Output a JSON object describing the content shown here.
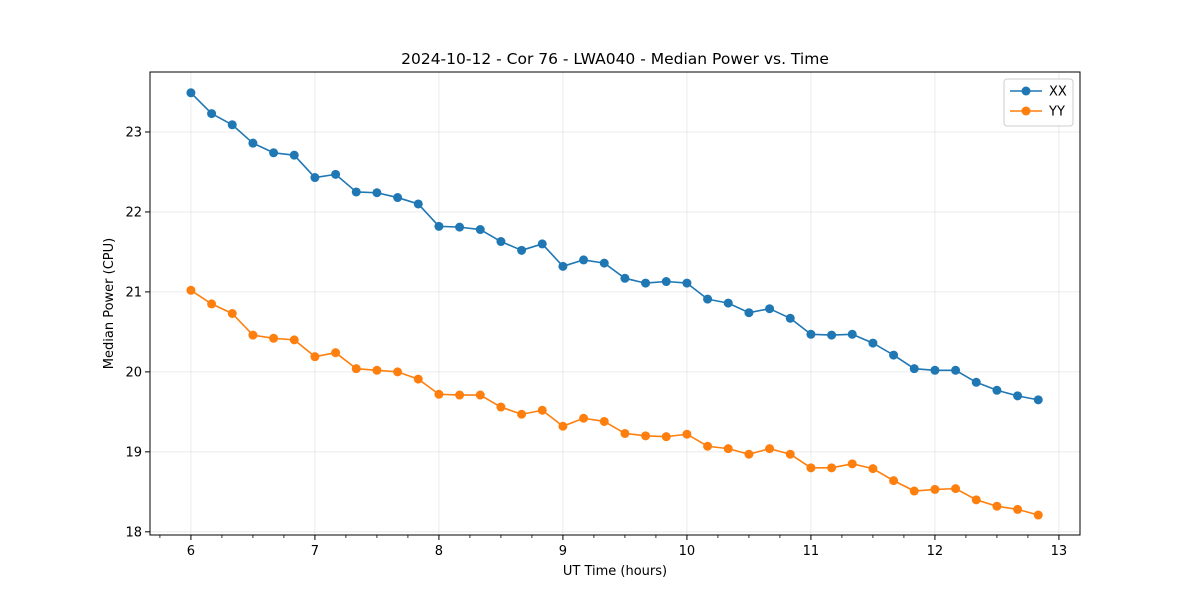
{
  "chart_data": {
    "type": "line",
    "title": "2024-10-12 - Cor 76 - LWA040 - Median Power vs. Time",
    "xlabel": "UT Time (hours)",
    "ylabel": "Median Power (CPU)",
    "xlim": [
      5.67,
      13.17
    ],
    "ylim": [
      17.96,
      23.75
    ],
    "xticks": [
      6,
      7,
      8,
      9,
      10,
      11,
      12,
      13
    ],
    "yticks": [
      18,
      19,
      20,
      21,
      22,
      23
    ],
    "xtick_labels": [
      "6",
      "7",
      "8",
      "9",
      "10",
      "11",
      "12",
      "13"
    ],
    "ytick_labels": [
      "18",
      "19",
      "20",
      "21",
      "22",
      "23"
    ],
    "grid": true,
    "legend_position": "top-right",
    "x": [
      6.0,
      6.1667,
      6.3333,
      6.5,
      6.6667,
      6.8333,
      7.0,
      7.1667,
      7.3333,
      7.5,
      7.6667,
      7.8333,
      8.0,
      8.1667,
      8.3333,
      8.5,
      8.6667,
      8.8333,
      9.0,
      9.1667,
      9.3333,
      9.5,
      9.6667,
      9.8333,
      10.0,
      10.1667,
      10.3333,
      10.5,
      10.6667,
      10.8333,
      11.0,
      11.1667,
      11.3333,
      11.5,
      11.6667,
      11.8333,
      12.0,
      12.1667,
      12.3333,
      12.5,
      12.6667,
      12.8333
    ],
    "series": [
      {
        "name": "XX",
        "color": "#1f77b4",
        "values": [
          23.49,
          23.23,
          23.09,
          22.86,
          22.74,
          22.71,
          22.43,
          22.47,
          22.25,
          22.24,
          22.18,
          22.1,
          21.82,
          21.81,
          21.78,
          21.63,
          21.52,
          21.6,
          21.32,
          21.4,
          21.36,
          21.17,
          21.11,
          21.13,
          21.11,
          20.91,
          20.86,
          20.74,
          20.79,
          20.67,
          20.47,
          20.46,
          20.47,
          20.36,
          20.21,
          20.04,
          20.02,
          20.02,
          19.87,
          19.77,
          19.7,
          19.65
        ]
      },
      {
        "name": "YY",
        "color": "#ff7f0e",
        "values": [
          21.02,
          20.85,
          20.73,
          20.46,
          20.42,
          20.4,
          20.19,
          20.24,
          20.04,
          20.02,
          20.0,
          19.91,
          19.72,
          19.71,
          19.71,
          19.56,
          19.47,
          19.52,
          19.32,
          19.42,
          19.38,
          19.23,
          19.2,
          19.19,
          19.22,
          19.07,
          19.04,
          18.97,
          19.04,
          18.97,
          18.8,
          18.8,
          18.85,
          18.79,
          18.64,
          18.51,
          18.53,
          18.54,
          18.4,
          18.32,
          18.28,
          18.21
        ]
      }
    ]
  }
}
